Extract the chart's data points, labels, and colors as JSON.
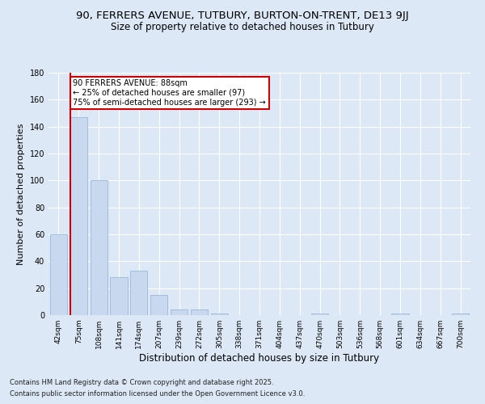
{
  "title_line1": "90, FERRERS AVENUE, TUTBURY, BURTON-ON-TRENT, DE13 9JJ",
  "title_line2": "Size of property relative to detached houses in Tutbury",
  "xlabel": "Distribution of detached houses by size in Tutbury",
  "ylabel": "Number of detached properties",
  "bar_labels": [
    "42sqm",
    "75sqm",
    "108sqm",
    "141sqm",
    "174sqm",
    "207sqm",
    "239sqm",
    "272sqm",
    "305sqm",
    "338sqm",
    "371sqm",
    "404sqm",
    "437sqm",
    "470sqm",
    "503sqm",
    "536sqm",
    "568sqm",
    "601sqm",
    "634sqm",
    "667sqm",
    "700sqm"
  ],
  "bar_values": [
    60,
    147,
    100,
    28,
    33,
    15,
    4,
    4,
    1,
    0,
    0,
    0,
    0,
    1,
    0,
    0,
    0,
    1,
    0,
    0,
    1
  ],
  "bar_color": "#c8d8ee",
  "bar_edge_color": "#9ab8d8",
  "ylim": [
    0,
    180
  ],
  "yticks": [
    0,
    20,
    40,
    60,
    80,
    100,
    120,
    140,
    160,
    180
  ],
  "red_line_index": 1,
  "annotation_title": "90 FERRERS AVENUE: 88sqm",
  "annotation_line1": "← 25% of detached houses are smaller (97)",
  "annotation_line2": "75% of semi-detached houses are larger (293) →",
  "annotation_box_color": "#ffffff",
  "annotation_border_color": "#cc0000",
  "footer_line1": "Contains HM Land Registry data © Crown copyright and database right 2025.",
  "footer_line2": "Contains public sector information licensed under the Open Government Licence v3.0.",
  "bg_color": "#dce8f5",
  "plot_bg_color": "#dce8f5",
  "grid_color": "#ffffff",
  "title_fontsize": 9.5,
  "subtitle_fontsize": 8.5,
  "tick_fontsize": 6.5,
  "ylabel_fontsize": 8,
  "xlabel_fontsize": 8.5,
  "footer_fontsize": 6
}
